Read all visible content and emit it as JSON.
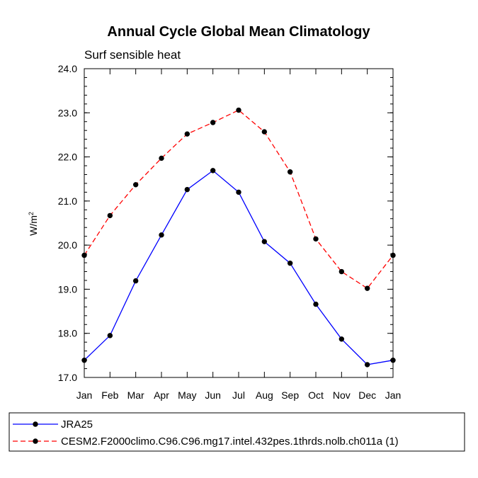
{
  "chart_data": {
    "type": "line",
    "title": "Annual Cycle Global Mean Climatology",
    "subtitle": "Surf sensible heat",
    "ylabel": "W/m",
    "ylabel_sup": "2",
    "xlabel": "",
    "ylim": [
      17.0,
      24.0
    ],
    "yticks": [
      "17.0",
      "18.0",
      "19.0",
      "20.0",
      "21.0",
      "22.0",
      "23.0",
      "24.0"
    ],
    "categories": [
      "Jan",
      "Feb",
      "Mar",
      "Apr",
      "May",
      "Jun",
      "Jul",
      "Aug",
      "Sep",
      "Oct",
      "Nov",
      "Dec",
      "Jan"
    ],
    "series": [
      {
        "name": "JRA25",
        "color": "#0000ff",
        "dash": "solid",
        "values": [
          17.39,
          17.95,
          19.19,
          20.23,
          21.26,
          21.69,
          21.2,
          20.08,
          19.59,
          18.66,
          17.87,
          17.29,
          17.39
        ]
      },
      {
        "name": "CESM2.F2000climo.C96.C96.mg17.intel.432pes.1thrds.nolb.ch011a (1)",
        "color": "#ff0000",
        "dash": "dashed",
        "values": [
          19.77,
          20.67,
          21.37,
          21.97,
          22.52,
          22.78,
          23.06,
          22.57,
          21.66,
          20.14,
          19.4,
          19.02,
          19.77
        ]
      }
    ]
  }
}
